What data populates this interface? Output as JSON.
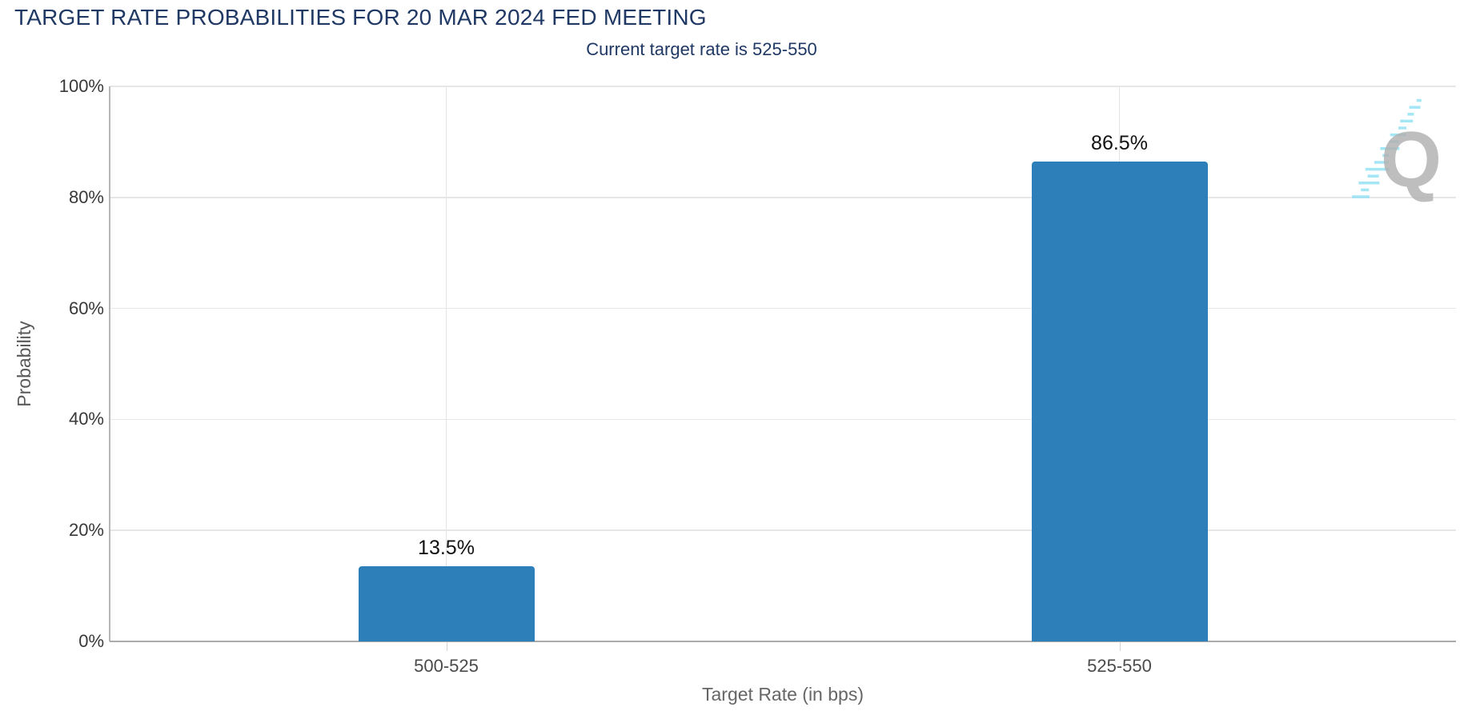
{
  "header": {
    "title": "TARGET RATE PROBABILITIES FOR 20 MAR 2024 FED MEETING",
    "subtitle": "Current target rate is 525-550"
  },
  "chart_data": {
    "type": "bar",
    "title": "TARGET RATE PROBABILITIES FOR 20 MAR 2024 FED MEETING",
    "subtitle": "Current target rate is 525-550",
    "categories": [
      "500-525",
      "525-550"
    ],
    "values": [
      13.5,
      86.5
    ],
    "data_labels": [
      "13.5%",
      "86.5%"
    ],
    "xlabel": "Target Rate (in bps)",
    "ylabel": "Probability",
    "ylim": [
      0,
      100
    ],
    "yticks": [
      0,
      20,
      40,
      60,
      80,
      100
    ],
    "ytick_labels": [
      "0%",
      "20%",
      "40%",
      "60%",
      "80%",
      "100%"
    ],
    "grid": true,
    "legend_position": "none",
    "bar_color": "#2c7fb8"
  },
  "watermark": {
    "letter": "Q",
    "q_color": "#b3b3b3",
    "dash_color": "#8ee0f5"
  },
  "colors": {
    "title_text": "#1f3864",
    "bar_fill": "#2c7fb8",
    "gridline": "#e6e6e6",
    "axis_line": "#b0b0b0",
    "tick_label": "#383838",
    "axis_title": "#5f5f5f",
    "data_label": "#111111",
    "background": "#ffffff"
  }
}
